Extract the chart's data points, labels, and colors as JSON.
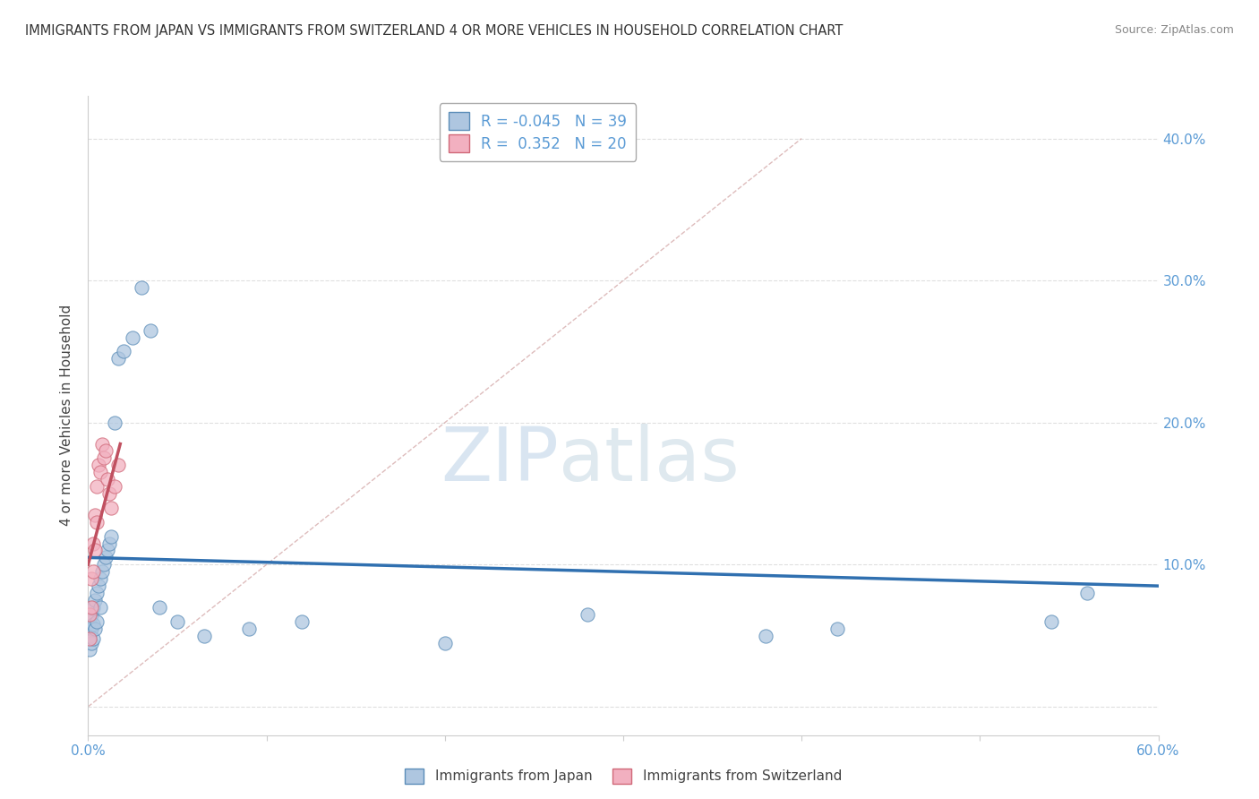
{
  "title": "IMMIGRANTS FROM JAPAN VS IMMIGRANTS FROM SWITZERLAND 4 OR MORE VEHICLES IN HOUSEHOLD CORRELATION CHART",
  "source": "Source: ZipAtlas.com",
  "ylabel": "4 or more Vehicles in Household",
  "legend_label1": "Immigrants from Japan",
  "legend_label2": "Immigrants from Switzerland",
  "R1": -0.045,
  "N1": 39,
  "R2": 0.352,
  "N2": 20,
  "xlim": [
    0.0,
    0.6
  ],
  "ylim": [
    -0.02,
    0.43
  ],
  "xticks": [
    0.0,
    0.1,
    0.2,
    0.3,
    0.4,
    0.5,
    0.6
  ],
  "yticks": [
    0.0,
    0.1,
    0.2,
    0.3,
    0.4
  ],
  "ytick_labels_right": [
    "",
    "10.0%",
    "20.0%",
    "30.0%",
    "40.0%"
  ],
  "xtick_labels": [
    "0.0%",
    "",
    "",
    "",
    "",
    "",
    "60.0%"
  ],
  "color_japan": "#aec6e0",
  "color_switzerland": "#f2b0c0",
  "color_japan_edge": "#5b8db8",
  "color_switzerland_edge": "#d06878",
  "color_japan_line": "#3070b0",
  "color_switzerland_line": "#c05060",
  "watermark_zip": "ZIP",
  "watermark_atlas": "atlas",
  "japan_x": [
    0.001,
    0.001,
    0.001,
    0.002,
    0.002,
    0.002,
    0.003,
    0.003,
    0.003,
    0.004,
    0.004,
    0.005,
    0.005,
    0.006,
    0.007,
    0.007,
    0.008,
    0.009,
    0.01,
    0.011,
    0.012,
    0.013,
    0.015,
    0.017,
    0.02,
    0.025,
    0.03,
    0.035,
    0.04,
    0.05,
    0.065,
    0.09,
    0.12,
    0.2,
    0.28,
    0.38,
    0.42,
    0.54,
    0.56
  ],
  "japan_y": [
    0.06,
    0.05,
    0.04,
    0.065,
    0.055,
    0.045,
    0.07,
    0.058,
    0.048,
    0.075,
    0.055,
    0.08,
    0.06,
    0.085,
    0.09,
    0.07,
    0.095,
    0.1,
    0.105,
    0.11,
    0.115,
    0.12,
    0.2,
    0.245,
    0.25,
    0.26,
    0.295,
    0.265,
    0.07,
    0.06,
    0.05,
    0.055,
    0.06,
    0.045,
    0.065,
    0.05,
    0.055,
    0.06,
    0.08
  ],
  "swiss_x": [
    0.001,
    0.001,
    0.002,
    0.002,
    0.003,
    0.003,
    0.004,
    0.004,
    0.005,
    0.005,
    0.006,
    0.007,
    0.008,
    0.009,
    0.01,
    0.011,
    0.012,
    0.013,
    0.015,
    0.017
  ],
  "swiss_y": [
    0.065,
    0.048,
    0.09,
    0.07,
    0.115,
    0.095,
    0.135,
    0.11,
    0.155,
    0.13,
    0.17,
    0.165,
    0.185,
    0.175,
    0.18,
    0.16,
    0.15,
    0.14,
    0.155,
    0.17
  ]
}
